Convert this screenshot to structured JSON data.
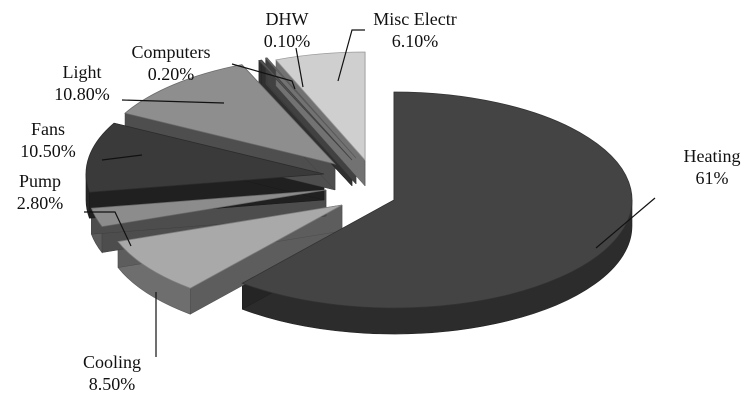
{
  "chart_data": {
    "type": "pie",
    "style": "3d-exploded",
    "title": "",
    "slices": [
      {
        "label": "Heating",
        "value_text": "61%",
        "value": 61.0,
        "color": "#444444"
      },
      {
        "label": "Cooling",
        "value_text": "8.50%",
        "value": 8.5,
        "color": "#a9a9a9"
      },
      {
        "label": "Pump",
        "value_text": "2.80%",
        "value": 2.8,
        "color": "#8c8c8c"
      },
      {
        "label": "Fans",
        "value_text": "10.50%",
        "value": 10.5,
        "color": "#3a3a3a"
      },
      {
        "label": "Light",
        "value_text": "10.80%",
        "value": 10.8,
        "color": "#8e8e8e"
      },
      {
        "label": "Computers",
        "value_text": "0.20%",
        "value": 0.2,
        "color": "#555555"
      },
      {
        "label": "DHW",
        "value_text": "0.10%",
        "value": 0.1,
        "color": "#777777"
      },
      {
        "label": "Misc Electr",
        "value_text": "6.10%",
        "value": 6.1,
        "color": "#cfcfcf"
      }
    ]
  }
}
